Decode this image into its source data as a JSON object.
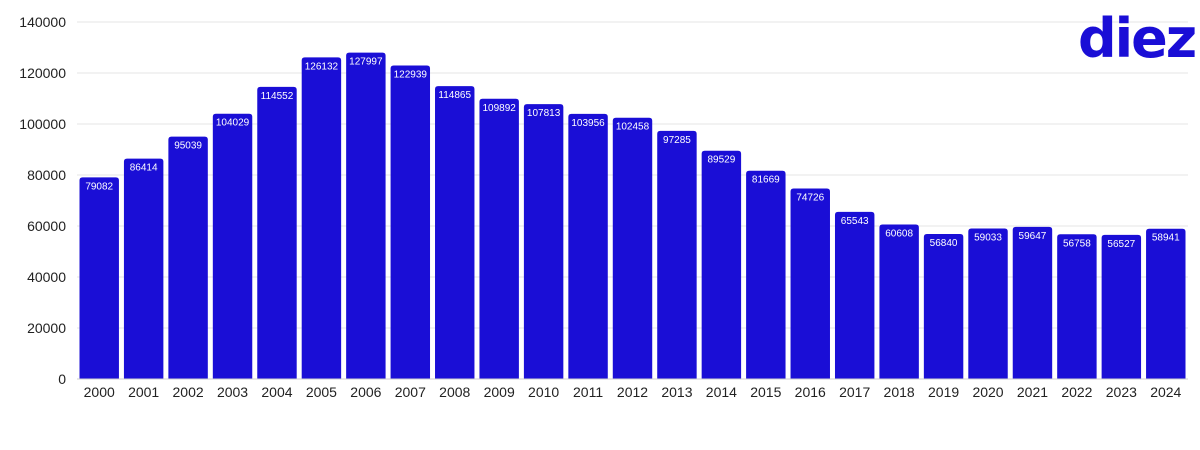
{
  "brand": {
    "logo_text": "diez",
    "color": "#1a0ed6"
  },
  "chart_data": {
    "type": "bar",
    "title": "",
    "xlabel": "",
    "ylabel": "",
    "ylim": [
      0,
      140000
    ],
    "yticks": [
      0,
      20000,
      40000,
      60000,
      80000,
      100000,
      120000,
      140000
    ],
    "grid": true,
    "bar_color": "#1a0ed6",
    "label_color": "#ffffff",
    "categories": [
      "2000",
      "2001",
      "2002",
      "2003",
      "2004",
      "2005",
      "2006",
      "2007",
      "2008",
      "2009",
      "2010",
      "2011",
      "2012",
      "2013",
      "2014",
      "2015",
      "2016",
      "2017",
      "2018",
      "2019",
      "2020",
      "2021",
      "2022",
      "2023",
      "2024"
    ],
    "values": [
      79082,
      86414,
      95039,
      104029,
      114552,
      126132,
      127997,
      122939,
      114865,
      109892,
      107813,
      103956,
      102458,
      97285,
      89529,
      81669,
      74726,
      65543,
      60608,
      56840,
      59033,
      59647,
      56758,
      56527,
      58941
    ]
  }
}
